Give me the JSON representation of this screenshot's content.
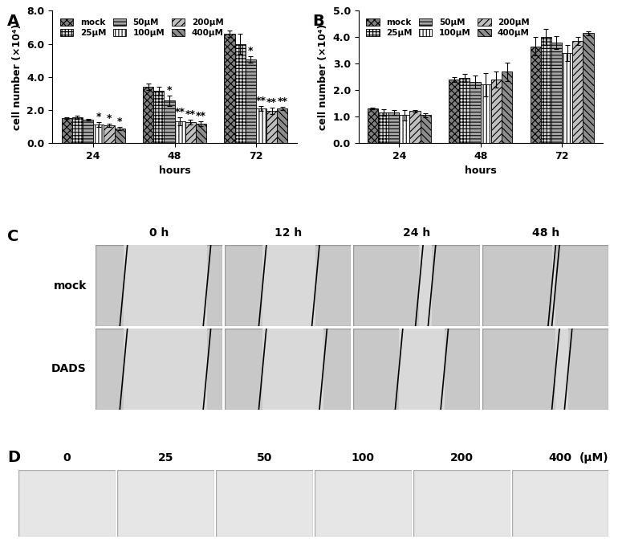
{
  "chart_data": [
    {
      "type": "bar",
      "panel": "A",
      "x_label": "hours",
      "y_label": "cell number (×10⁴)",
      "categories": [
        "24",
        "48",
        "72"
      ],
      "ylim": [
        0,
        8
      ],
      "yticks": [
        {
          "value": 0,
          "label": "0.0"
        },
        {
          "value": 2,
          "label": "2.0"
        },
        {
          "value": 4,
          "label": "4.0"
        },
        {
          "value": 6,
          "label": "6.0"
        },
        {
          "value": 8,
          "label": "8.0"
        }
      ],
      "legend": "upper left",
      "series": [
        {
          "name": "mock",
          "color": "#7f7f7f",
          "values": [
            1.5,
            3.4,
            6.6
          ],
          "errors": [
            0.05,
            0.2,
            0.2
          ],
          "significance": [
            null,
            null,
            null
          ]
        },
        {
          "name": "25μM",
          "color": "#d9d9d9",
          "values": [
            1.55,
            3.15,
            6.0
          ],
          "errors": [
            0.1,
            0.25,
            0.6
          ],
          "significance": [
            null,
            null,
            null
          ]
        },
        {
          "name": "50μM",
          "color": "#a6a6a6",
          "values": [
            1.4,
            2.55,
            5.05
          ],
          "errors": [
            0.05,
            0.3,
            0.2
          ],
          "significance": [
            null,
            "*",
            "*"
          ]
        },
        {
          "name": "100μM",
          "color": "#ffffff",
          "values": [
            1.1,
            1.3,
            2.1
          ],
          "errors": [
            0.15,
            0.25,
            0.15
          ],
          "significance": [
            "*",
            "**",
            "**"
          ]
        },
        {
          "name": "200μM",
          "color": "#bfbfbf",
          "values": [
            1.05,
            1.25,
            1.95
          ],
          "errors": [
            0.1,
            0.15,
            0.2
          ],
          "significance": [
            "*",
            "**",
            "**"
          ]
        },
        {
          "name": "400μM",
          "color": "#8c8c8c",
          "values": [
            0.85,
            1.15,
            2.1
          ],
          "errors": [
            0.1,
            0.15,
            0.1
          ],
          "significance": [
            "*",
            "**",
            "**"
          ]
        }
      ]
    },
    {
      "type": "bar",
      "panel": "B",
      "x_label": "hours",
      "y_label": "cell number (×10⁴)",
      "categories": [
        "24",
        "48",
        "72"
      ],
      "ylim": [
        0,
        5
      ],
      "yticks": [
        {
          "value": 0,
          "label": "0.0"
        },
        {
          "value": 1,
          "label": "1.0"
        },
        {
          "value": 2,
          "label": "2.0"
        },
        {
          "value": 3,
          "label": "3.0"
        },
        {
          "value": 4,
          "label": "4.0"
        },
        {
          "value": 5,
          "label": "5.0"
        }
      ],
      "legend": "upper left",
      "series": [
        {
          "name": "mock",
          "color": "#7f7f7f",
          "values": [
            1.3,
            2.4,
            3.65
          ],
          "errors": [
            0.03,
            0.1,
            0.35
          ]
        },
        {
          "name": "25μM",
          "color": "#d9d9d9",
          "values": [
            1.15,
            2.45,
            4.0
          ],
          "errors": [
            0.12,
            0.15,
            0.3
          ]
        },
        {
          "name": "50μM",
          "color": "#a6a6a6",
          "values": [
            1.15,
            2.3,
            3.8
          ],
          "errors": [
            0.1,
            0.25,
            0.25
          ]
        },
        {
          "name": "100μM",
          "color": "#ffffff",
          "values": [
            1.05,
            2.2,
            3.4
          ],
          "errors": [
            0.2,
            0.45,
            0.3
          ]
        },
        {
          "name": "200μM",
          "color": "#bfbfbf",
          "values": [
            1.2,
            2.4,
            3.85
          ],
          "errors": [
            0.05,
            0.3,
            0.15
          ]
        },
        {
          "name": "400μM",
          "color": "#8c8c8c",
          "values": [
            1.05,
            2.7,
            4.15
          ],
          "errors": [
            0.08,
            0.35,
            0.08
          ]
        }
      ]
    }
  ],
  "wound_healing": {
    "panel": "C",
    "timepoints": [
      "0 h",
      "12 h",
      "24 h",
      "48 h"
    ],
    "rows": [
      "mock",
      "DADS"
    ]
  },
  "transwell": {
    "panel": "D",
    "concentrations": [
      "0",
      "25",
      "50",
      "100",
      "200",
      "400"
    ],
    "unit": "(μM)"
  }
}
